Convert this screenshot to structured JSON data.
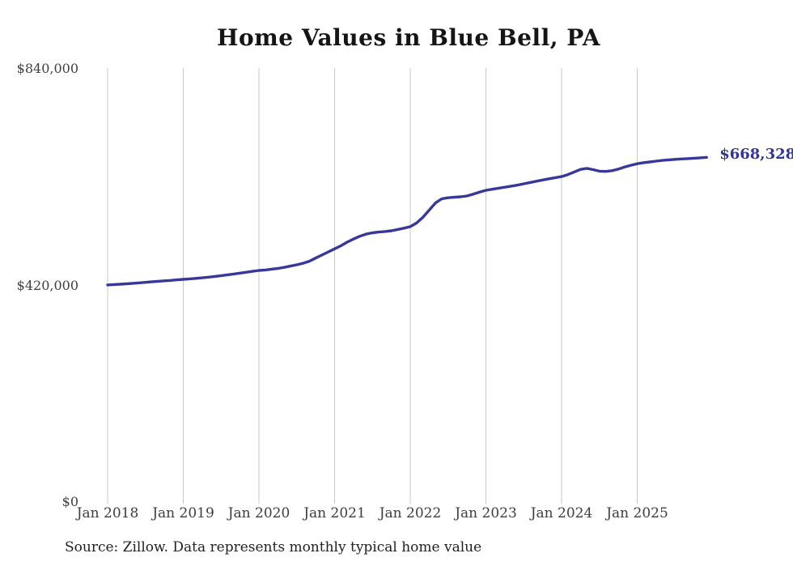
{
  "title": "Home Values in Blue Bell, PA",
  "source_note": "Source: Zillow. Data represents monthly typical home value",
  "end_label": "$668,328",
  "colors": {
    "line": "#38389c",
    "end_label": "#33339b",
    "grid": "#c9c9c9",
    "axis_text": "#3e3e3e",
    "title_text": "#151515",
    "source_text": "#1f1f1f",
    "background": "#ffffff"
  },
  "chart_data": {
    "type": "line",
    "title": "Home Values in Blue Bell, PA",
    "x_interval": "monthly",
    "x_start": "Jan 2018",
    "x_end": "Dec 2025",
    "x_tick_labels": [
      "Jan 2018",
      "Jan 2019",
      "Jan 2020",
      "Jan 2021",
      "Jan 2022",
      "Jan 2023",
      "Jan 2024",
      "Jan 2025"
    ],
    "y_ticks": [
      {
        "label": "$0",
        "value": 0
      },
      {
        "label": "$420,000",
        "value": 420000
      },
      {
        "label": "$840,000",
        "value": 840000
      }
    ],
    "ylim": [
      0,
      840000
    ],
    "grid": "vertical-only",
    "legend": "none",
    "end_annotation": "$668,328",
    "series": [
      {
        "name": "Typical home value",
        "color": "#38389c",
        "values": [
          421000,
          421700,
          422400,
          423200,
          424100,
          425000,
          426000,
          427000,
          428000,
          428900,
          429800,
          430800,
          431800,
          432700,
          433700,
          434800,
          436000,
          437400,
          439000,
          440600,
          442200,
          443900,
          445600,
          447300,
          449000,
          450000,
          451500,
          453000,
          455000,
          457500,
          460000,
          463000,
          467000,
          473000,
          479000,
          485000,
          491000,
          497000,
          504000,
          510000,
          515500,
          519500,
          522000,
          523500,
          524500,
          526000,
          528500,
          531000,
          534000,
          541000,
          552000,
          566000,
          580000,
          588000,
          590000,
          591000,
          592000,
          593500,
          597000,
          601000,
          604500,
          606500,
          608500,
          610500,
          612500,
          614500,
          617000,
          619500,
          622000,
          624500,
          626800,
          629000,
          631000,
          635000,
          640000,
          645000,
          647000,
          644500,
          641500,
          641000,
          642500,
          645500,
          649500,
          653000,
          656000,
          658000,
          659500,
          661000,
          662500,
          663500,
          664500,
          665200,
          665900,
          666700,
          667500,
          668328
        ]
      }
    ]
  }
}
